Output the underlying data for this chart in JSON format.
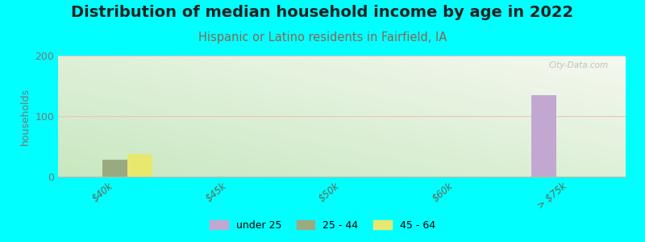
{
  "title": "Distribution of median household income by age in 2022",
  "subtitle": "Hispanic or Latino residents in Fairfield, IA",
  "ylabel": "households",
  "background_color": "#00FFFF",
  "categories": [
    "$40k",
    "$45k",
    "$50k",
    "$60k",
    "> $75k"
  ],
  "series": [
    {
      "label": "under 25",
      "color": "#c2a8d0",
      "values": [
        0,
        0,
        0,
        0,
        135
      ]
    },
    {
      "label": "25 - 44",
      "color": "#9aaa80",
      "values": [
        28,
        0,
        0,
        0,
        0
      ]
    },
    {
      "label": "45 - 64",
      "color": "#e8e870",
      "values": [
        38,
        0,
        0,
        0,
        0
      ]
    }
  ],
  "ylim": [
    0,
    200
  ],
  "yticks": [
    0,
    100,
    200
  ],
  "bar_width": 0.22,
  "title_fontsize": 14,
  "subtitle_fontsize": 10.5,
  "subtitle_color": "#886655",
  "watermark": "City-Data.com",
  "grid_color": "#f0c0c0",
  "bg_top_left": "#c8e8c0",
  "bg_top_right": "#f0f0e8",
  "bg_bottom_left": "#b0d8a0",
  "bg_bottom_right": "#e8f0e0"
}
